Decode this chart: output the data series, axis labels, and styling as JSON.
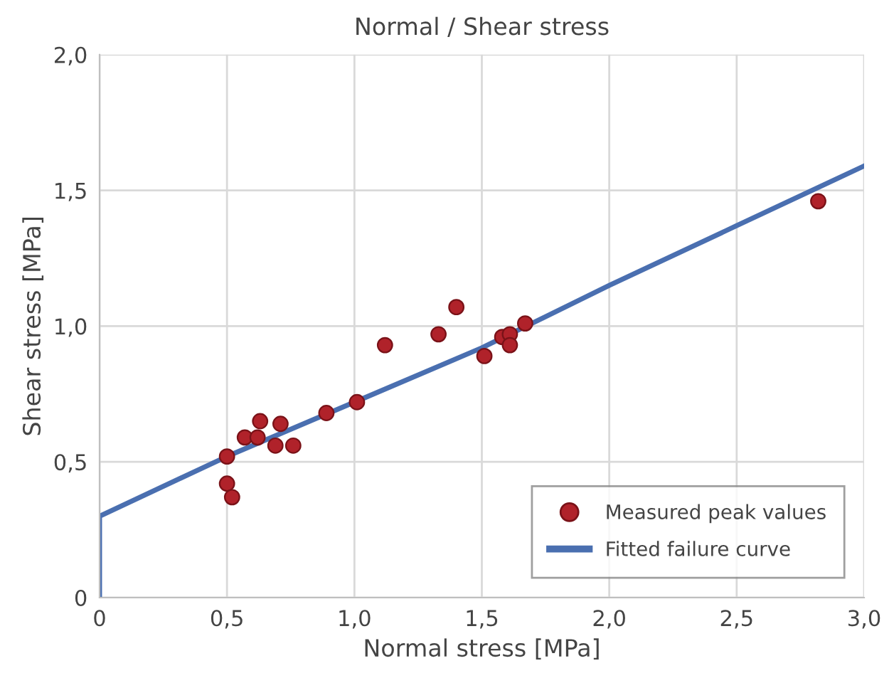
{
  "chart_data": {
    "type": "scatter",
    "title": "Normal / Shear stress",
    "xlabel": "Normal stress [MPa]",
    "ylabel": "Shear stress [MPa]",
    "xlim": [
      0,
      3.0
    ],
    "ylim": [
      0,
      2.0
    ],
    "xticks": [
      0,
      {
        "value": 0.5,
        "label": "0,5"
      },
      {
        "value": 1.0,
        "label": "1,0"
      },
      {
        "value": 1.5,
        "label": "1,5"
      },
      {
        "value": 2.0,
        "label": "2,0"
      },
      {
        "value": 2.5,
        "label": "2,5"
      },
      {
        "value": 3.0,
        "label": "3,0"
      }
    ],
    "yticks": [
      0,
      {
        "value": 0.5,
        "label": "0,5"
      },
      {
        "value": 1.0,
        "label": "1,0"
      },
      {
        "value": 1.5,
        "label": "1,5"
      },
      {
        "value": 2.0,
        "label": "2,0"
      }
    ],
    "grid": true,
    "legend": "bottom right",
    "series": [
      {
        "name": "Measured peak values",
        "type": "scatter",
        "marker": "circle",
        "color": "#b0222a",
        "x": [
          0.5,
          0.5,
          0.52,
          0.57,
          0.63,
          0.62,
          0.69,
          0.71,
          0.76,
          0.89,
          1.01,
          1.12,
          1.33,
          1.4,
          1.51,
          1.58,
          1.61,
          1.61,
          1.67,
          2.82
        ],
        "values": [
          0.52,
          0.42,
          0.37,
          0.59,
          0.65,
          0.59,
          0.56,
          0.64,
          0.56,
          0.68,
          0.72,
          0.93,
          0.97,
          1.07,
          0.89,
          0.96,
          0.97,
          0.93,
          1.01,
          1.46
        ]
      },
      {
        "name": "Fitted failure curve",
        "type": "line",
        "marker": "none",
        "line_style": "solid",
        "color": "#4a6fb0",
        "x": [
          0,
          0,
          0.5,
          1.0,
          1.5,
          2.0,
          2.5,
          3.0
        ],
        "values": [
          0,
          0.3,
          0.52,
          0.72,
          0.92,
          1.15,
          1.37,
          1.59
        ]
      }
    ]
  }
}
